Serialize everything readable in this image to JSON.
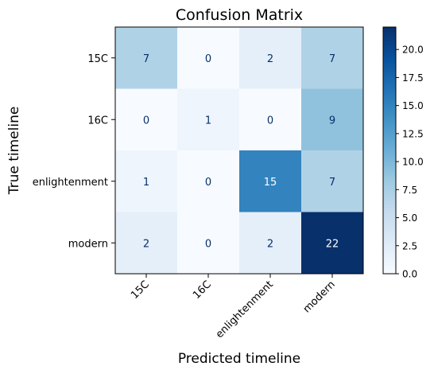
{
  "chart_data": {
    "type": "heatmap",
    "title": "Confusion Matrix",
    "xlabel": "Predicted timeline",
    "ylabel": "True timeline",
    "x_categories": [
      "15C",
      "16C",
      "enlightenment",
      "modern"
    ],
    "y_categories": [
      "15C",
      "16C",
      "enlightenment",
      "modern"
    ],
    "values": [
      [
        7,
        0,
        2,
        7
      ],
      [
        0,
        1,
        0,
        9
      ],
      [
        1,
        0,
        15,
        7
      ],
      [
        2,
        0,
        2,
        22
      ]
    ],
    "colormap": "Blues",
    "color_range": [
      0,
      22
    ],
    "colorbar_ticks": [
      "0.0",
      "2.5",
      "5.0",
      "7.5",
      "10.0",
      "12.5",
      "15.0",
      "17.5",
      "20.0"
    ],
    "colorbar_tick_values": [
      0,
      2.5,
      5,
      7.5,
      10,
      12.5,
      15,
      17.5,
      20
    ],
    "text_color_light": "#ffffff",
    "text_color_dark": "#08306b"
  }
}
